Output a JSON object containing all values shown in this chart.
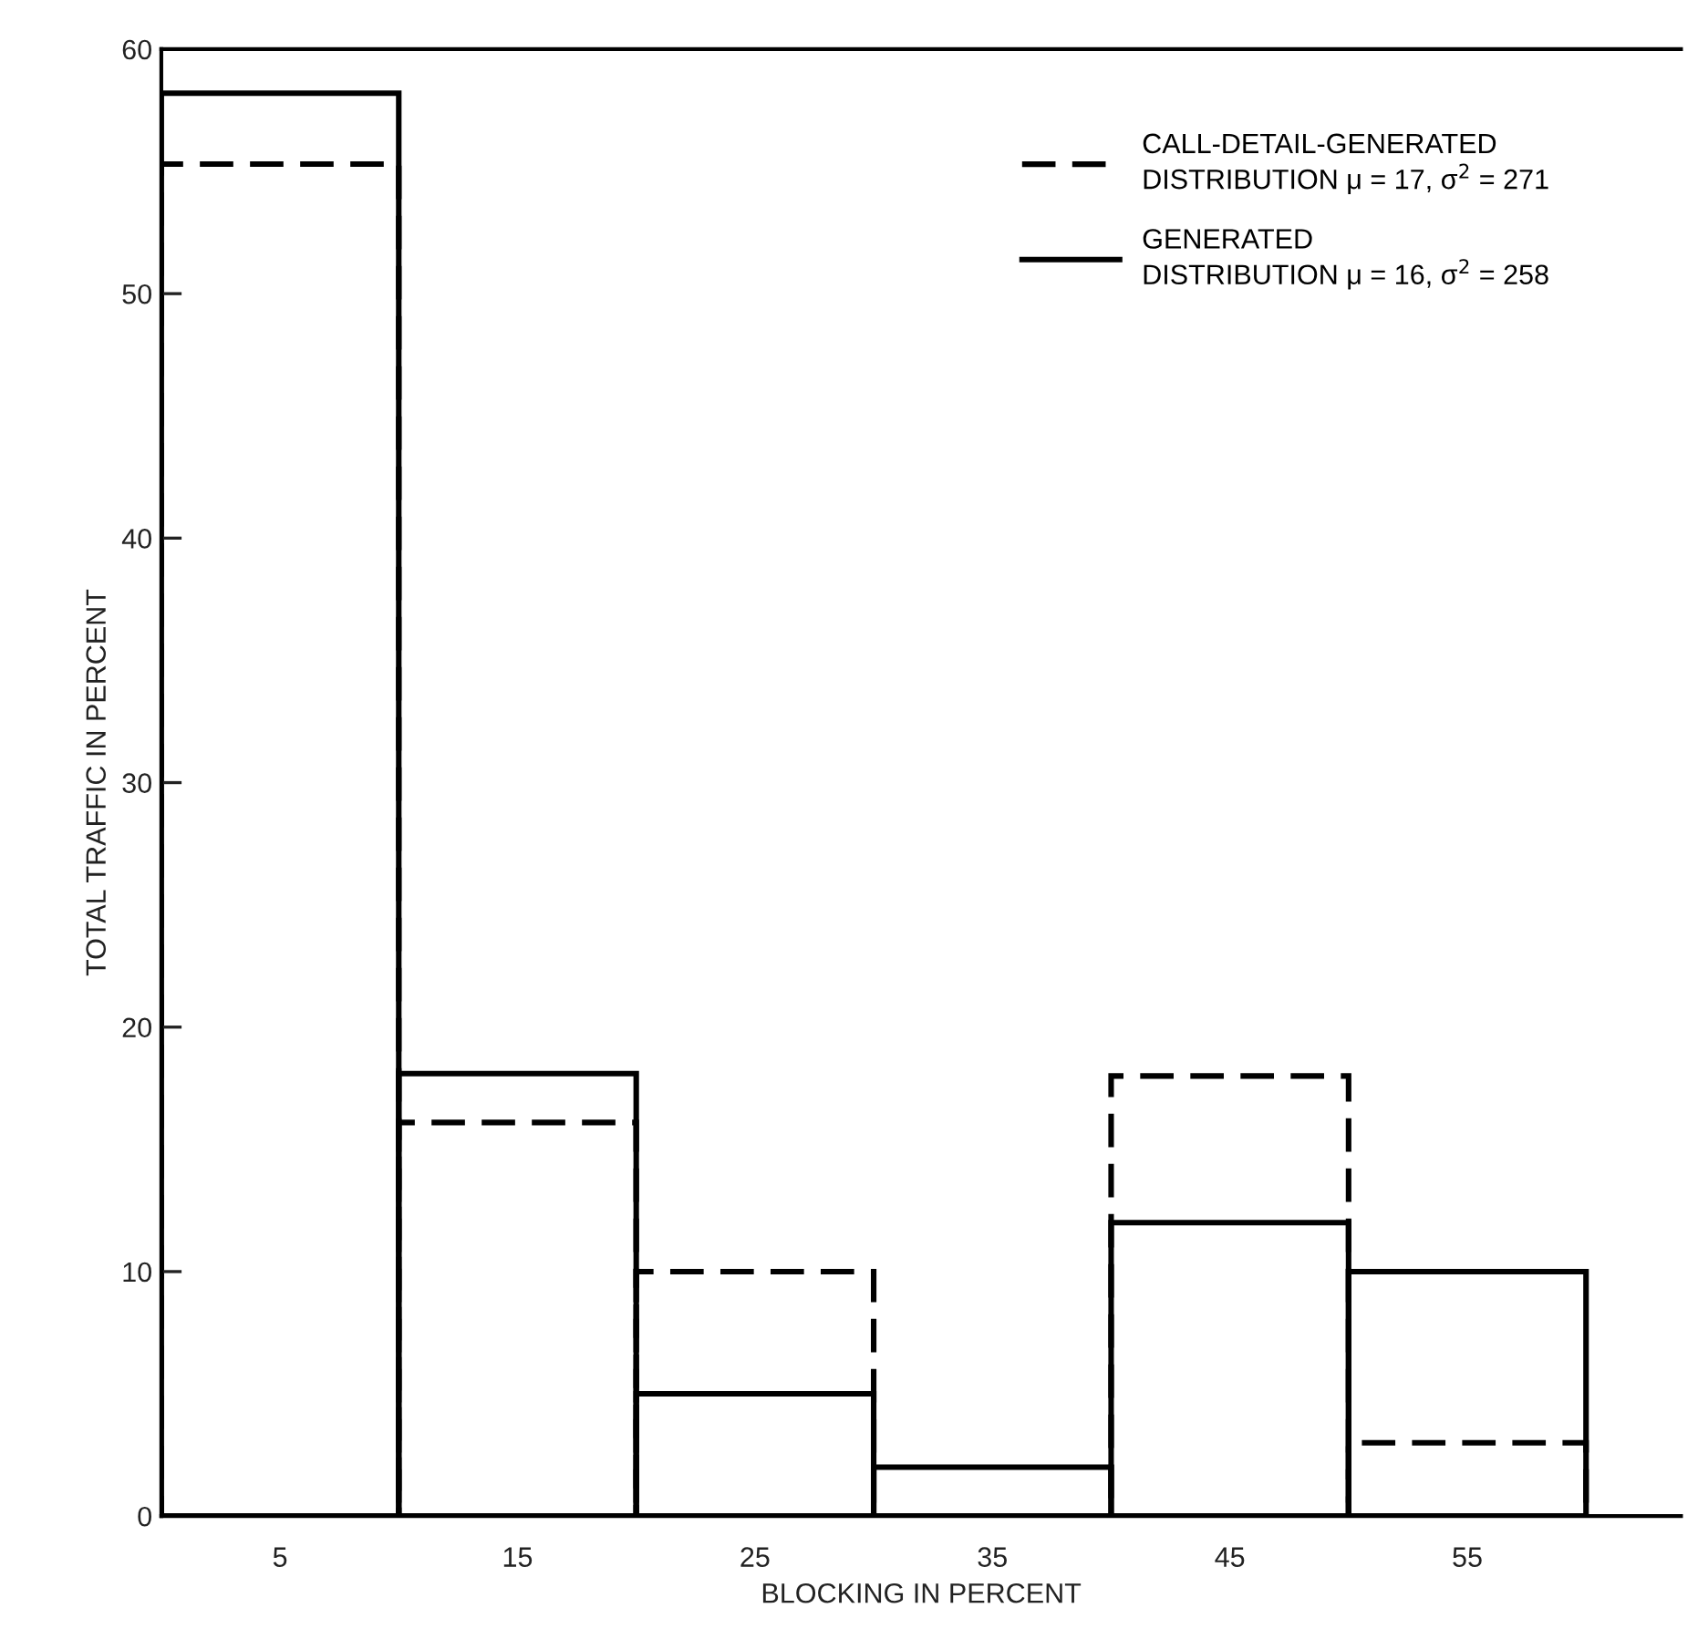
{
  "chart_data": {
    "type": "bar",
    "xlabel": "BLOCKING IN PERCENT",
    "ylabel": "TOTAL TRAFFIC IN PERCENT",
    "categories": [
      "5",
      "15",
      "25",
      "35",
      "45",
      "55"
    ],
    "series": [
      {
        "name": "CALL-DETAIL-GENERATED\nDISTRIBUTION μ = 17, σ$^{2}$ = 271",
        "color": "#000000",
        "line_style": "dashed",
        "values": [
          55.3,
          16.1,
          10,
          0,
          18,
          3
        ]
      },
      {
        "name": "GENERATED\nDISTRIBUTION μ = 16, σ$^{2}$ = 258",
        "color": "#000000",
        "line_style": "solid",
        "values": [
          58.2,
          18.1,
          5,
          2,
          12,
          10
        ]
      }
    ],
    "ylim": [
      0,
      60
    ],
    "yticks": [
      0,
      10,
      20,
      30,
      40,
      50,
      60
    ],
    "legend": "top right"
  }
}
